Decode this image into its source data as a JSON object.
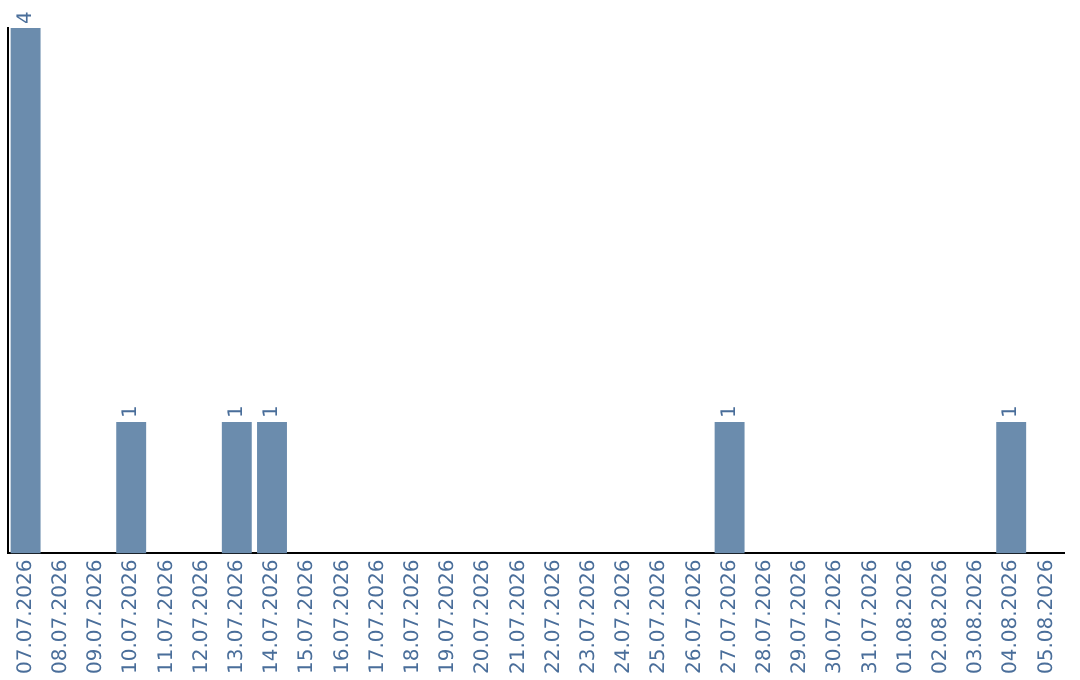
{
  "chart_data": {
    "type": "bar",
    "categories": [
      "07.07.2026",
      "08.07.2026",
      "09.07.2026",
      "10.07.2026",
      "11.07.2026",
      "12.07.2026",
      "13.07.2026",
      "14.07.2026",
      "15.07.2026",
      "16.07.2026",
      "17.07.2026",
      "18.07.2026",
      "19.07.2026",
      "20.07.2026",
      "21.07.2026",
      "22.07.2026",
      "23.07.2026",
      "24.07.2026",
      "25.07.2026",
      "26.07.2026",
      "27.07.2026",
      "28.07.2026",
      "29.07.2026",
      "30.07.2026",
      "31.07.2026",
      "01.08.2026",
      "02.08.2026",
      "03.08.2026",
      "04.08.2026",
      "05.08.2026"
    ],
    "values": [
      4,
      0,
      0,
      1,
      0,
      0,
      1,
      1,
      0,
      0,
      0,
      0,
      0,
      0,
      0,
      0,
      0,
      0,
      0,
      0,
      1,
      0,
      0,
      0,
      0,
      0,
      0,
      0,
      1,
      0
    ],
    "value_labels": [
      "4",
      null,
      null,
      "1",
      null,
      null,
      "1",
      "1",
      null,
      null,
      null,
      null,
      null,
      null,
      null,
      null,
      null,
      null,
      null,
      null,
      "1",
      null,
      null,
      null,
      null,
      null,
      null,
      null,
      "1",
      null
    ],
    "color": "#6b8cad",
    "grid": false,
    "legend": false
  }
}
